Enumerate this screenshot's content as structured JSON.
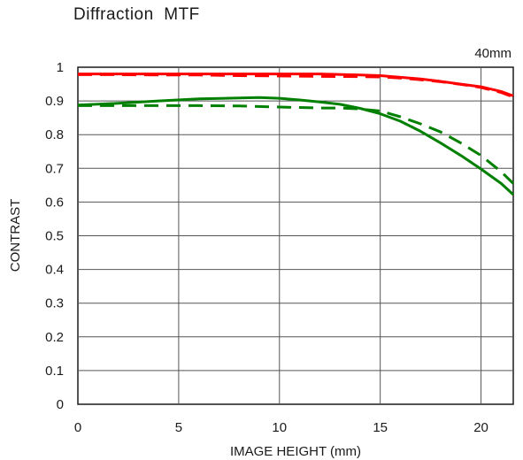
{
  "title": "Diffraction  MTF",
  "chart_data": {
    "type": "line",
    "title": "Diffraction  MTF",
    "annotation": "40mm",
    "xlabel": "IMAGE HEIGHT (mm)",
    "ylabel": "CONTRAST",
    "xlim": [
      0,
      21.6
    ],
    "ylim": [
      0,
      1
    ],
    "x_ticks": [
      0,
      5,
      10,
      15,
      20
    ],
    "x_tick_labels": [
      "0",
      "5",
      "10",
      "15",
      "20"
    ],
    "y_ticks": [
      0,
      0.1,
      0.2,
      0.3,
      0.4,
      0.5,
      0.6,
      0.7,
      0.8,
      0.9,
      1
    ],
    "y_tick_labels": [
      "0",
      "0.1",
      "0.2",
      "0.3",
      "0.4",
      "0.5",
      "0.6",
      "0.7",
      "0.8",
      "0.9",
      "1"
    ],
    "grid": true,
    "series": [
      {
        "color": "#ff0000",
        "dash": "solid",
        "x": [
          0,
          2,
          4,
          6,
          8,
          10,
          12,
          14,
          15,
          16,
          17,
          18,
          19,
          20,
          21,
          21.6
        ],
        "y": [
          0.98,
          0.98,
          0.98,
          0.98,
          0.98,
          0.98,
          0.98,
          0.977,
          0.975,
          0.97,
          0.965,
          0.958,
          0.95,
          0.942,
          0.928,
          0.915
        ]
      },
      {
        "color": "#ff0000",
        "dash": "dashed",
        "x": [
          0,
          2,
          4,
          6,
          8,
          10,
          12,
          14,
          15,
          16,
          17,
          18,
          19,
          20,
          21,
          21.6
        ],
        "y": [
          0.978,
          0.978,
          0.977,
          0.977,
          0.975,
          0.974,
          0.973,
          0.972,
          0.971,
          0.968,
          0.963,
          0.957,
          0.949,
          0.94,
          0.925,
          0.912
        ]
      },
      {
        "color": "#008000",
        "dash": "solid",
        "x": [
          0,
          2,
          4,
          6,
          8,
          9,
          10,
          11,
          12,
          13,
          14,
          15,
          16,
          17,
          18,
          19,
          20,
          21,
          21.6
        ],
        "y": [
          0.888,
          0.893,
          0.9,
          0.906,
          0.909,
          0.91,
          0.908,
          0.903,
          0.897,
          0.89,
          0.878,
          0.862,
          0.84,
          0.81,
          0.775,
          0.738,
          0.698,
          0.655,
          0.622
        ]
      },
      {
        "color": "#008000",
        "dash": "dashed",
        "x": [
          0,
          2,
          4,
          6,
          8,
          10,
          12,
          13,
          14,
          15,
          16,
          17,
          18,
          19,
          20,
          21,
          21.6
        ],
        "y": [
          0.886,
          0.886,
          0.886,
          0.886,
          0.885,
          0.882,
          0.879,
          0.879,
          0.876,
          0.87,
          0.853,
          0.832,
          0.808,
          0.775,
          0.738,
          0.69,
          0.655
        ]
      }
    ]
  }
}
